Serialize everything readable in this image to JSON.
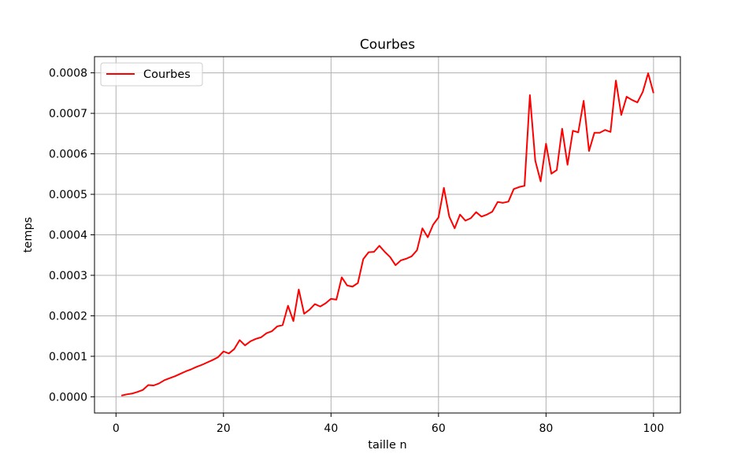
{
  "chart_data": {
    "type": "line",
    "title": "Courbes",
    "xlabel": "taille n",
    "ylabel": "temps",
    "xlim": [
      -4,
      105
    ],
    "ylim": [
      -4e-05,
      0.00084
    ],
    "grid": true,
    "legend_placement": "top-left",
    "x_ticks": [
      0,
      20,
      40,
      60,
      80,
      100
    ],
    "x_tick_labels": [
      "0",
      "20",
      "40",
      "60",
      "80",
      "100"
    ],
    "y_ticks": [
      0,
      0.0001,
      0.0002,
      0.0003,
      0.0004,
      0.0005,
      0.0006,
      0.0007,
      0.0008
    ],
    "y_tick_labels": [
      "0.0000",
      "0.0001",
      "0.0002",
      "0.0003",
      "0.0004",
      "0.0005",
      "0.0006",
      "0.0007",
      "0.0008"
    ],
    "series": [
      {
        "name": "Courbes",
        "color": "#ff0000",
        "x": [
          1,
          2,
          3,
          4,
          5,
          6,
          7,
          8,
          9,
          10,
          11,
          12,
          13,
          14,
          15,
          16,
          17,
          18,
          19,
          20,
          21,
          22,
          23,
          24,
          25,
          26,
          27,
          28,
          29,
          30,
          31,
          32,
          33,
          34,
          35,
          36,
          37,
          38,
          39,
          40,
          41,
          42,
          43,
          44,
          45,
          46,
          47,
          48,
          49,
          50,
          51,
          52,
          53,
          54,
          55,
          56,
          57,
          58,
          59,
          60,
          61,
          62,
          63,
          64,
          65,
          66,
          67,
          68,
          69,
          70,
          71,
          72,
          73,
          74,
          75,
          76,
          77,
          78,
          79,
          80,
          81,
          82,
          83,
          84,
          85,
          86,
          87,
          88,
          89,
          90,
          91,
          92,
          93,
          94,
          95,
          96,
          97,
          98,
          99,
          100
        ],
        "values": [
          3e-06,
          6e-06,
          8e-06,
          1.2e-05,
          1.7e-05,
          2.9e-05,
          2.8e-05,
          3.3e-05,
          4.1e-05,
          4.6e-05,
          5.1e-05,
          5.7e-05,
          6.3e-05,
          6.8e-05,
          7.4e-05,
          7.9e-05,
          8.5e-05,
          9.1e-05,
          9.8e-05,
          0.000112,
          0.000107,
          0.000118,
          0.00014,
          0.000127,
          0.000137,
          0.000143,
          0.000147,
          0.000157,
          0.000162,
          0.000174,
          0.000177,
          0.000225,
          0.000187,
          0.000265,
          0.000205,
          0.000215,
          0.000229,
          0.000223,
          0.000231,
          0.000242,
          0.00024,
          0.000295,
          0.000275,
          0.000272,
          0.000281,
          0.00034,
          0.000357,
          0.000358,
          0.000373,
          0.000358,
          0.000345,
          0.000325,
          0.000337,
          0.000341,
          0.000347,
          0.000362,
          0.000416,
          0.000394,
          0.000425,
          0.000443,
          0.000516,
          0.000445,
          0.000416,
          0.00045,
          0.000435,
          0.000441,
          0.000456,
          0.000445,
          0.00045,
          0.000457,
          0.000481,
          0.000479,
          0.000482,
          0.000513,
          0.000518,
          0.000521,
          0.000745,
          0.000583,
          0.000532,
          0.000625,
          0.000551,
          0.00056,
          0.000662,
          0.000573,
          0.000657,
          0.000653,
          0.000731,
          0.000607,
          0.000652,
          0.000652,
          0.000659,
          0.000654,
          0.000781,
          0.000696,
          0.000741,
          0.000733,
          0.000727,
          0.000753,
          0.000799,
          0.00075
        ]
      }
    ]
  }
}
